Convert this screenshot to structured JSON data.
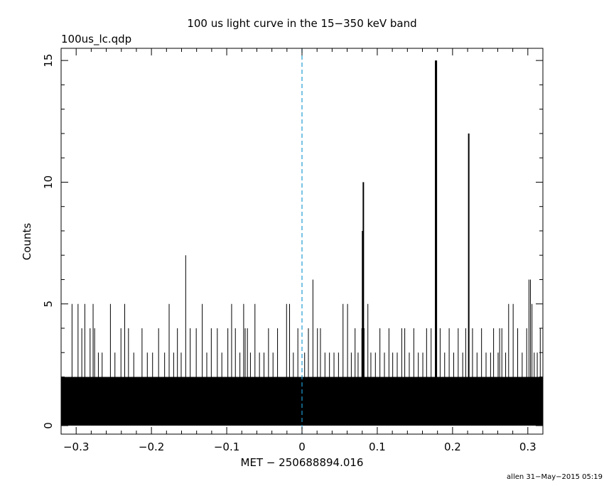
{
  "chart_data": {
    "type": "bar",
    "title": "100 us light curve in the 15−350 keV band",
    "file_label": "100us_lc.qdp",
    "xlabel": "MET − 250688894.016",
    "ylabel": "Counts",
    "footer": "allen 31−May−2015 05:19",
    "xlim": [
      -0.32,
      0.32
    ],
    "ylim": [
      -0.35,
      15.5
    ],
    "x_ticks": [
      -0.3,
      -0.2,
      -0.1,
      0,
      0.1,
      0.2,
      0.3
    ],
    "x_tick_labels": [
      "−0.3",
      "−0.2",
      "−0.1",
      "0",
      "0.1",
      "0.2",
      "0.3"
    ],
    "y_ticks": [
      0,
      5,
      10,
      15
    ],
    "y_tick_labels": [
      "0",
      "5",
      "10",
      "15"
    ],
    "trigger_line_x": 0,
    "trigger_line_color": "#1f9bd0",
    "bar_color": "#000000",
    "bin_width": 0.0001,
    "baseline_level": 2,
    "bins": [
      {
        "x": -0.3055,
        "y": 5
      },
      {
        "x": -0.2975,
        "y": 5
      },
      {
        "x": -0.2925,
        "y": 4
      },
      {
        "x": -0.2885,
        "y": 5
      },
      {
        "x": -0.2815,
        "y": 4
      },
      {
        "x": -0.2775,
        "y": 5
      },
      {
        "x": -0.2755,
        "y": 4
      },
      {
        "x": -0.2705,
        "y": 3
      },
      {
        "x": -0.2655,
        "y": 3
      },
      {
        "x": -0.2545,
        "y": 5
      },
      {
        "x": -0.2485,
        "y": 3
      },
      {
        "x": -0.2405,
        "y": 4
      },
      {
        "x": -0.2355,
        "y": 5
      },
      {
        "x": -0.2305,
        "y": 4
      },
      {
        "x": -0.2235,
        "y": 3
      },
      {
        "x": -0.2125,
        "y": 4
      },
      {
        "x": -0.2055,
        "y": 3
      },
      {
        "x": -0.1985,
        "y": 3
      },
      {
        "x": -0.1905,
        "y": 4
      },
      {
        "x": -0.1825,
        "y": 3
      },
      {
        "x": -0.1765,
        "y": 5
      },
      {
        "x": -0.1705,
        "y": 3
      },
      {
        "x": -0.1655,
        "y": 4
      },
      {
        "x": -0.1605,
        "y": 3
      },
      {
        "x": -0.1545,
        "y": 7
      },
      {
        "x": -0.1485,
        "y": 4
      },
      {
        "x": -0.1405,
        "y": 4
      },
      {
        "x": -0.1325,
        "y": 5
      },
      {
        "x": -0.1265,
        "y": 3
      },
      {
        "x": -0.1205,
        "y": 4
      },
      {
        "x": -0.1125,
        "y": 4
      },
      {
        "x": -0.1065,
        "y": 3
      },
      {
        "x": -0.0985,
        "y": 4
      },
      {
        "x": -0.0935,
        "y": 5
      },
      {
        "x": -0.0885,
        "y": 4
      },
      {
        "x": -0.0825,
        "y": 3
      },
      {
        "x": -0.0775,
        "y": 5
      },
      {
        "x": -0.0755,
        "y": 4
      },
      {
        "x": -0.0725,
        "y": 4
      },
      {
        "x": -0.0685,
        "y": 3
      },
      {
        "x": -0.0625,
        "y": 5
      },
      {
        "x": -0.0565,
        "y": 3
      },
      {
        "x": -0.0505,
        "y": 3
      },
      {
        "x": -0.0445,
        "y": 4
      },
      {
        "x": -0.0385,
        "y": 3
      },
      {
        "x": -0.0325,
        "y": 4
      },
      {
        "x": -0.0205,
        "y": 5
      },
      {
        "x": -0.0165,
        "y": 5
      },
      {
        "x": -0.0115,
        "y": 3
      },
      {
        "x": -0.0055,
        "y": 4
      },
      {
        "x": 0.0035,
        "y": 3
      },
      {
        "x": 0.0085,
        "y": 4
      },
      {
        "x": 0.0145,
        "y": 6
      },
      {
        "x": 0.0205,
        "y": 4
      },
      {
        "x": 0.0245,
        "y": 4
      },
      {
        "x": 0.0305,
        "y": 3
      },
      {
        "x": 0.0365,
        "y": 3
      },
      {
        "x": 0.0425,
        "y": 3
      },
      {
        "x": 0.0485,
        "y": 3
      },
      {
        "x": 0.0545,
        "y": 5
      },
      {
        "x": 0.0605,
        "y": 5
      },
      {
        "x": 0.0655,
        "y": 3
      },
      {
        "x": 0.0705,
        "y": 4
      },
      {
        "x": 0.0745,
        "y": 3
      },
      {
        "x": 0.0795,
        "y": 4
      },
      {
        "x": 0.0805,
        "y": 8
      },
      {
        "x": 0.0815,
        "y": 10
      },
      {
        "x": 0.0825,
        "y": 4
      },
      {
        "x": 0.0875,
        "y": 5
      },
      {
        "x": 0.0915,
        "y": 3
      },
      {
        "x": 0.0975,
        "y": 3
      },
      {
        "x": 0.1035,
        "y": 4
      },
      {
        "x": 0.1095,
        "y": 3
      },
      {
        "x": 0.1155,
        "y": 4
      },
      {
        "x": 0.1205,
        "y": 3
      },
      {
        "x": 0.1265,
        "y": 3
      },
      {
        "x": 0.1325,
        "y": 4
      },
      {
        "x": 0.1365,
        "y": 4
      },
      {
        "x": 0.1425,
        "y": 3
      },
      {
        "x": 0.1485,
        "y": 4
      },
      {
        "x": 0.1545,
        "y": 3
      },
      {
        "x": 0.1605,
        "y": 3
      },
      {
        "x": 0.1655,
        "y": 4
      },
      {
        "x": 0.1715,
        "y": 4
      },
      {
        "x": 0.1775,
        "y": 15
      },
      {
        "x": 0.1785,
        "y": 15
      },
      {
        "x": 0.1835,
        "y": 4
      },
      {
        "x": 0.1895,
        "y": 3
      },
      {
        "x": 0.1955,
        "y": 4
      },
      {
        "x": 0.2015,
        "y": 3
      },
      {
        "x": 0.2075,
        "y": 4
      },
      {
        "x": 0.2135,
        "y": 3
      },
      {
        "x": 0.2175,
        "y": 4
      },
      {
        "x": 0.2215,
        "y": 12
      },
      {
        "x": 0.2265,
        "y": 4
      },
      {
        "x": 0.2325,
        "y": 3
      },
      {
        "x": 0.2385,
        "y": 4
      },
      {
        "x": 0.2445,
        "y": 3
      },
      {
        "x": 0.2505,
        "y": 3
      },
      {
        "x": 0.2545,
        "y": 4
      },
      {
        "x": 0.2605,
        "y": 3
      },
      {
        "x": 0.2625,
        "y": 4
      },
      {
        "x": 0.2655,
        "y": 4
      },
      {
        "x": 0.2705,
        "y": 3
      },
      {
        "x": 0.2745,
        "y": 5
      },
      {
        "x": 0.2805,
        "y": 5
      },
      {
        "x": 0.2865,
        "y": 4
      },
      {
        "x": 0.2925,
        "y": 3
      },
      {
        "x": 0.2985,
        "y": 4
      },
      {
        "x": 0.3015,
        "y": 6
      },
      {
        "x": 0.3035,
        "y": 6
      },
      {
        "x": 0.3055,
        "y": 5
      },
      {
        "x": 0.3085,
        "y": 3
      },
      {
        "x": 0.3125,
        "y": 3
      },
      {
        "x": 0.3165,
        "y": 4
      }
    ]
  }
}
